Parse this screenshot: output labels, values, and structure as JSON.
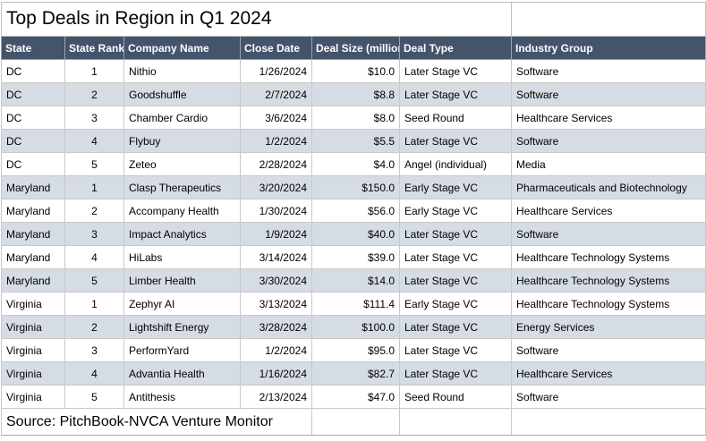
{
  "chart_data": {
    "type": "table",
    "title": "Top Deals in Region in Q1 2024",
    "source": "Source: PitchBook-NVCA Venture Monitor",
    "columns": [
      "State",
      "State Rank",
      "Company Name",
      "Close Date",
      "Deal Size (million",
      "Deal Type",
      "Industry Group"
    ],
    "rows": [
      [
        "DC",
        "1",
        "Nithio",
        "1/26/2024",
        "$10.0",
        "Later Stage VC",
        "Software"
      ],
      [
        "DC",
        "2",
        "Goodshuffle",
        "2/7/2024",
        "$8.8",
        "Later Stage VC",
        "Software"
      ],
      [
        "DC",
        "3",
        "Chamber Cardio",
        "3/6/2024",
        "$8.0",
        "Seed Round",
        "Healthcare Services"
      ],
      [
        "DC",
        "4",
        "Flybuy",
        "1/2/2024",
        "$5.5",
        "Later Stage VC",
        "Software"
      ],
      [
        "DC",
        "5",
        "Zeteo",
        "2/28/2024",
        "$4.0",
        "Angel (individual)",
        "Media"
      ],
      [
        "Maryland",
        "1",
        "Clasp Therapeutics",
        "3/20/2024",
        "$150.0",
        "Early Stage VC",
        "Pharmaceuticals and Biotechnology"
      ],
      [
        "Maryland",
        "2",
        "Accompany Health",
        "1/30/2024",
        "$56.0",
        "Early Stage VC",
        "Healthcare Services"
      ],
      [
        "Maryland",
        "3",
        "Impact Analytics",
        "1/9/2024",
        "$40.0",
        "Later Stage VC",
        "Software"
      ],
      [
        "Maryland",
        "4",
        "HiLabs",
        "3/14/2024",
        "$39.0",
        "Later Stage VC",
        "Healthcare Technology Systems"
      ],
      [
        "Maryland",
        "5",
        "Limber Health",
        "3/30/2024",
        "$14.0",
        "Later Stage VC",
        "Healthcare Technology Systems"
      ],
      [
        "Virginia",
        "1",
        "Zephyr AI",
        "3/13/2024",
        "$111.4",
        "Early Stage VC",
        "Healthcare Technology Systems"
      ],
      [
        "Virginia",
        "2",
        "Lightshift Energy",
        "3/28/2024",
        "$100.0",
        "Later Stage VC",
        "Energy Services"
      ],
      [
        "Virginia",
        "3",
        "PerformYard",
        "1/2/2024",
        "$95.0",
        "Later Stage VC",
        "Software"
      ],
      [
        "Virginia",
        "4",
        "Advantia Health",
        "1/16/2024",
        "$82.7",
        "Later Stage VC",
        "Healthcare Services"
      ],
      [
        "Virginia",
        "5",
        "Antithesis",
        "2/13/2024",
        "$47.0",
        "Seed Round",
        "Software"
      ]
    ],
    "layout": {
      "column_alignments": [
        "left",
        "center",
        "left",
        "right",
        "right",
        "left",
        "left"
      ],
      "banded_rows": true
    },
    "colors": {
      "header_bg": "#44546A",
      "header_text": "#FFFFFF",
      "row_band_bg": "#D6DCE4",
      "gridline": "#C9C9C9"
    }
  }
}
